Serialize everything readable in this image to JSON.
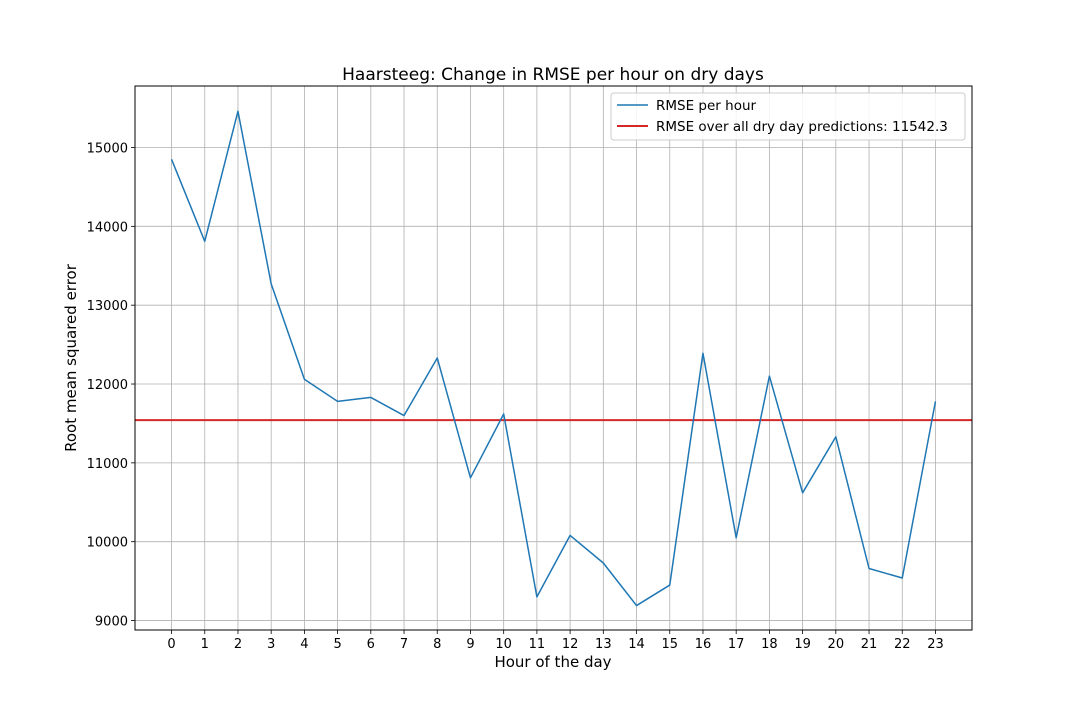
{
  "chart_data": {
    "type": "line",
    "title": "Haarsteeg: Change in RMSE per hour on dry days",
    "xlabel": "Hour of the day",
    "ylabel": "Root mean squared error",
    "x": [
      0,
      1,
      2,
      3,
      4,
      5,
      6,
      7,
      8,
      9,
      10,
      11,
      12,
      13,
      14,
      15,
      16,
      17,
      18,
      19,
      20,
      21,
      22,
      23
    ],
    "x_tick_labels": [
      "0",
      "1",
      "2",
      "3",
      "4",
      "5",
      "6",
      "7",
      "8",
      "9",
      "10",
      "11",
      "12",
      "13",
      "14",
      "15",
      "16",
      "17",
      "18",
      "19",
      "20",
      "21",
      "22",
      "23"
    ],
    "xlim": [
      -1.1,
      24.1
    ],
    "ylim": [
      8880,
      15780
    ],
    "y_ticks": [
      9000,
      10000,
      11000,
      12000,
      13000,
      14000,
      15000
    ],
    "y_tick_labels": [
      "9000",
      "10000",
      "11000",
      "12000",
      "13000",
      "14000",
      "15000"
    ],
    "grid": true,
    "legend_position": "upper right",
    "series": [
      {
        "name": "RMSE per hour",
        "color": "#1f77b4",
        "values": [
          14850,
          13810,
          15460,
          13270,
          12060,
          11780,
          11830,
          11600,
          12330,
          10810,
          11620,
          9300,
          10080,
          9730,
          9190,
          9450,
          12390,
          10050,
          12100,
          10620,
          11330,
          9660,
          9540,
          11780
        ]
      }
    ],
    "reference_lines": [
      {
        "name": "RMSE over all dry day predictions: 11542.3",
        "color": "#d62728",
        "value": 11542.3,
        "orientation": "horizontal"
      }
    ]
  }
}
